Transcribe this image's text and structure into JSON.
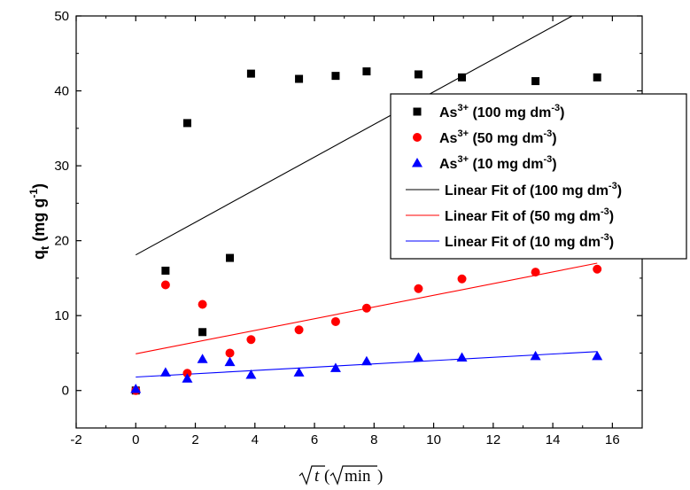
{
  "chart_data": {
    "type": "scatter",
    "xlim": [
      -2,
      17
    ],
    "ylim": [
      -5,
      50
    ],
    "xticks": [
      -2,
      0,
      2,
      4,
      6,
      8,
      10,
      12,
      14,
      16
    ],
    "yticks": [
      0,
      10,
      20,
      30,
      40,
      50
    ],
    "ylabel": "q",
    "ylabel_sub": "t",
    "ylabel_unit": " (mg g",
    "ylabel_sup": "-1",
    "ylabel_close": ")",
    "xlabel_var": "t",
    "xlabel_unit": "min",
    "legend_position": "right",
    "series": [
      {
        "name_base": "As",
        "name_sup": "3+",
        "name_rest": " (100 mg dm",
        "name_rest_sup": "-3",
        "name_close": ")",
        "color": "#000000",
        "marker": "square",
        "x": [
          0,
          1,
          1.73,
          2.24,
          3.16,
          3.87,
          5.48,
          6.71,
          7.75,
          9.49,
          10.95,
          13.42,
          15.49
        ],
        "y": [
          0,
          16,
          35.7,
          7.8,
          17.7,
          42.3,
          41.6,
          42,
          42.6,
          42.2,
          41.8,
          41.3,
          41.8
        ]
      },
      {
        "name_base": "As",
        "name_sup": "3+",
        "name_rest": " (50 mg dm",
        "name_rest_sup": "-3",
        "name_close": ")",
        "color": "#ff0000",
        "marker": "circle",
        "x": [
          0,
          1,
          1.73,
          2.24,
          3.16,
          3.87,
          5.48,
          6.71,
          7.75,
          9.49,
          10.95,
          13.42,
          15.49
        ],
        "y": [
          0,
          14.1,
          2.3,
          11.5,
          5,
          6.8,
          8.1,
          9.2,
          11,
          13.6,
          14.9,
          15.8,
          16.2
        ]
      },
      {
        "name_base": "As",
        "name_sup": "3+",
        "name_rest": " (10 mg dm",
        "name_rest_sup": "-3",
        "name_close": ")",
        "color": "#0000ff",
        "marker": "triangle",
        "x": [
          0,
          1,
          1.73,
          2.24,
          3.16,
          3.87,
          5.48,
          6.71,
          7.75,
          9.49,
          10.95,
          13.42,
          15.49
        ],
        "y": [
          0.2,
          2.4,
          1.6,
          4.2,
          3.8,
          2.1,
          2.4,
          3,
          3.9,
          4.4,
          4.4,
          4.6,
          4.6
        ]
      }
    ],
    "fits": [
      {
        "name": "Linear Fit of (100 mg dm",
        "name_sup": "-3",
        "name_close": ")",
        "color": "#000000",
        "x": [
          0,
          14.65
        ],
        "y": [
          18.1,
          50
        ]
      },
      {
        "name": "Linear Fit of (50 mg dm",
        "name_sup": "-3",
        "name_close": ")",
        "color": "#ff0000",
        "x": [
          0,
          15.49
        ],
        "y": [
          4.9,
          17
        ]
      },
      {
        "name": "Linear Fit of (10 mg dm",
        "name_sup": "-3",
        "name_close": ")",
        "color": "#0000ff",
        "x": [
          0,
          15.49
        ],
        "y": [
          1.8,
          5.2
        ]
      }
    ]
  }
}
